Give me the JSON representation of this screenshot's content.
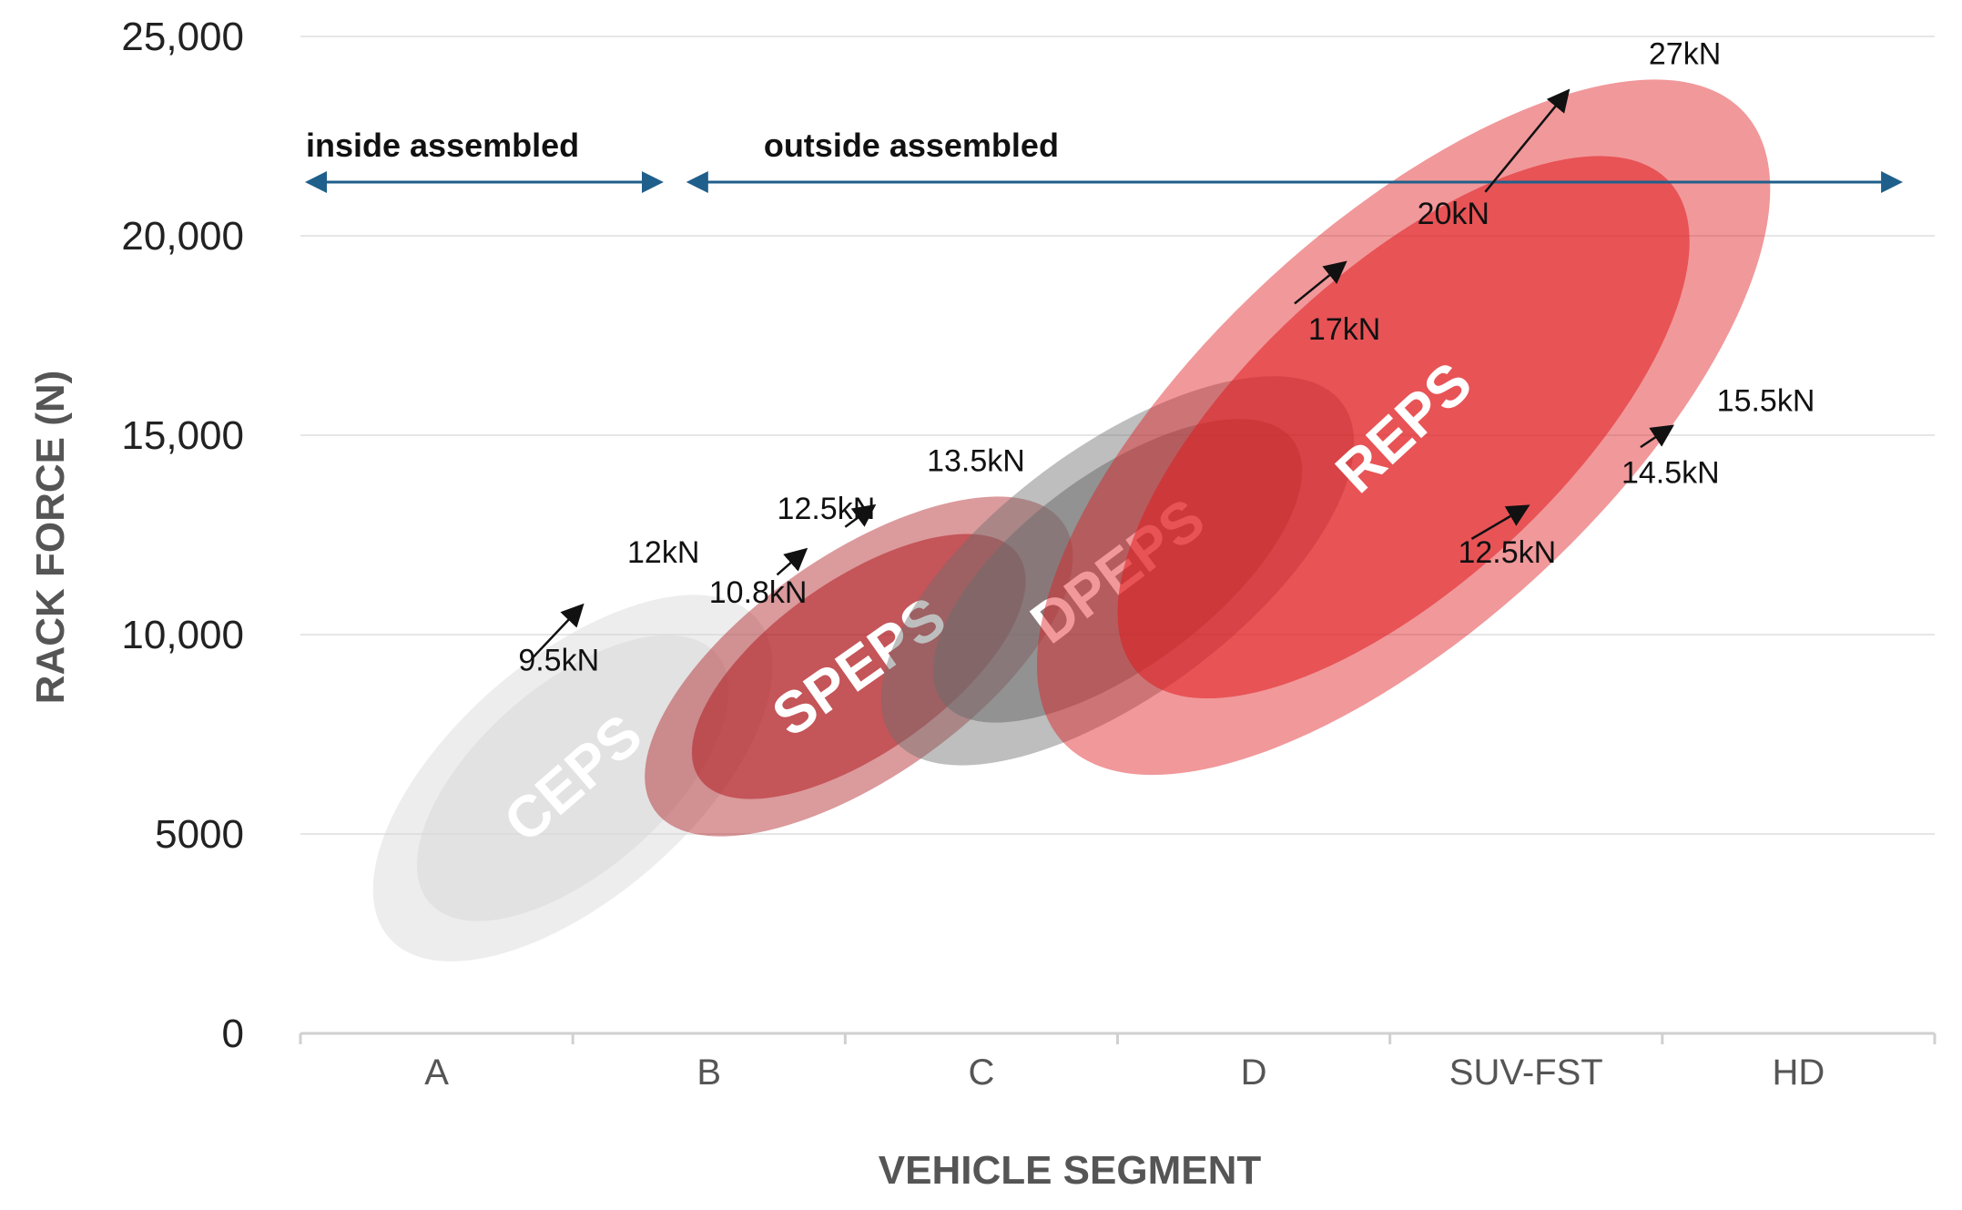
{
  "chart_data": {
    "type": "scatter",
    "title": "",
    "xlabel": "VEHICLE SEGMENT",
    "ylabel": "RACK FORCE (N)",
    "categories": [
      "A",
      "B",
      "C",
      "D",
      "SUV-FST",
      "HD"
    ],
    "ylim": [
      0,
      25000
    ],
    "yticks": [
      {
        "value": 0,
        "label": "0"
      },
      {
        "value": 5000,
        "label": "5000"
      },
      {
        "value": 10000,
        "label": "10,000"
      },
      {
        "value": 15000,
        "label": "15,000"
      },
      {
        "value": 20000,
        "label": "20,000"
      },
      {
        "value": 25000,
        "label": "25,000"
      }
    ],
    "grid": true,
    "regions": [
      {
        "label": "inside assembled",
        "from": 0,
        "to": 1.35
      },
      {
        "label": "outside assembled",
        "from": 1.4,
        "to": 5.9
      }
    ],
    "series": [
      {
        "name": "CEPS",
        "color": "#d8d8d8",
        "x_center": 1.0,
        "y_center": 6400,
        "x_range": [
          0.45,
          1.8
        ],
        "y_range": [
          2400,
          10400
        ]
      },
      {
        "name": "SPEPS",
        "color": "#b01e23",
        "x_center": 2.05,
        "y_center": 9200,
        "x_range": [
          1.35,
          2.85
        ],
        "y_range": [
          5800,
          13000
        ]
      },
      {
        "name": "DPEPS",
        "color": "#6e6e6e",
        "x_center": 3.0,
        "y_center": 11600,
        "x_range": [
          2.2,
          3.85
        ],
        "y_range": [
          7400,
          15800
        ]
      },
      {
        "name": "REPS",
        "color": "#e01b1f",
        "x_center": 4.05,
        "y_center": 15200,
        "x_range": [
          3.0,
          5.5
        ],
        "y_range": [
          10400,
          26200
        ]
      }
    ],
    "annotations": [
      {
        "label": "9.5kN",
        "x": 0.8,
        "y": 9100
      },
      {
        "label": "12kN",
        "x": 1.2,
        "y": 11800
      },
      {
        "label": "10.8kN",
        "x": 1.5,
        "y": 10800
      },
      {
        "label": "12.5kN",
        "x": 1.75,
        "y": 12900
      },
      {
        "label": "13.5kN",
        "x": 2.3,
        "y": 14100
      },
      {
        "label": "17kN",
        "x": 3.7,
        "y": 17400
      },
      {
        "label": "20kN",
        "x": 4.1,
        "y": 20300
      },
      {
        "label": "27kN",
        "x": 4.95,
        "y": 24300
      },
      {
        "label": "12.5kN",
        "x": 4.25,
        "y": 11800
      },
      {
        "label": "14.5kN",
        "x": 4.85,
        "y": 13800
      },
      {
        "label": "15.5kN",
        "x": 5.2,
        "y": 15600
      }
    ]
  }
}
